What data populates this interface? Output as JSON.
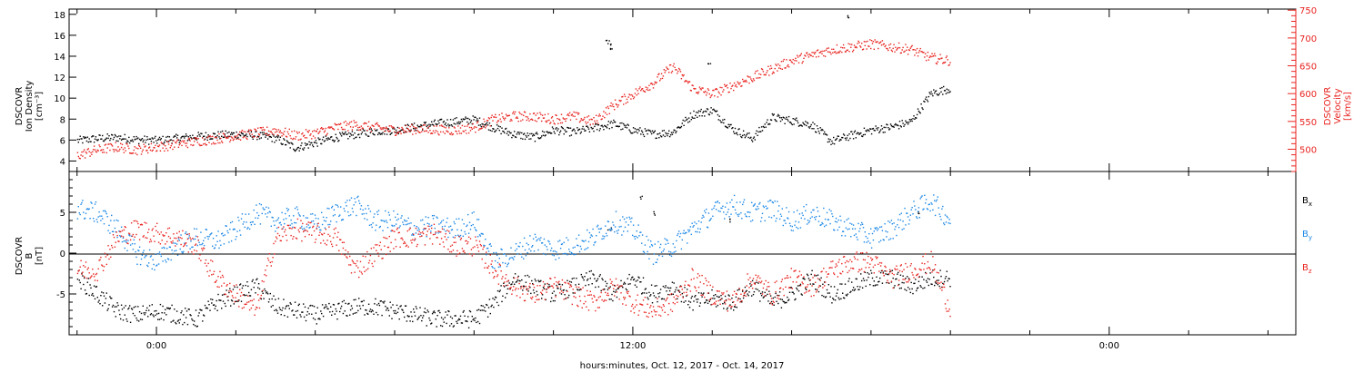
{
  "chart_data": [
    {
      "type": "scatter",
      "panel": "top",
      "ylabel": [
        "DSCOVR",
        "Ion Density",
        "[cm⁻³]"
      ],
      "ylim": [
        3,
        18.5
      ],
      "yticks": [
        4,
        6,
        8,
        10,
        12,
        14,
        16,
        18
      ],
      "ylabel_right": [
        "DSCOVR",
        "Velocity",
        "[km/s]"
      ],
      "ylim_right": [
        460,
        752
      ],
      "yticks_right": [
        500,
        550,
        600,
        650,
        700,
        750
      ],
      "series": [
        {
          "color": "#000000",
          "axis": "left",
          "x": [
            -2.0,
            -1.5,
            -1.0,
            -0.5,
            0.0,
            0.5,
            1.0,
            1.5,
            2.0,
            2.5,
            3.0,
            3.5,
            4.0,
            4.5,
            5.0,
            5.5,
            6.0,
            6.5,
            7.0,
            7.5,
            8.0,
            8.5,
            9.0,
            9.5,
            10.0,
            10.5,
            11.0,
            11.5,
            12.0,
            12.5,
            13.0,
            13.5,
            14.0,
            14.5,
            15.0,
            15.5,
            16.0,
            16.5,
            17.0,
            17.5,
            18.0,
            18.5,
            19.0,
            19.5,
            20.0
          ],
          "values": [
            6.0,
            6.2,
            6.3,
            6.1,
            6.0,
            6.2,
            6.4,
            6.5,
            6.6,
            6.5,
            6.2,
            5.3,
            5.8,
            6.3,
            6.6,
            6.9,
            7.0,
            7.3,
            7.6,
            7.8,
            8.0,
            7.2,
            6.6,
            6.3,
            7.0,
            6.8,
            7.2,
            7.6,
            7.0,
            6.6,
            6.8,
            8.5,
            8.9,
            7.1,
            6.2,
            8.2,
            7.9,
            7.5,
            5.9,
            6.5,
            7.0,
            7.3,
            7.8,
            10.5,
            11.0
          ],
          "x_extra": [
            11.35,
            11.4,
            11.45,
            13.9,
            17.4
          ],
          "values_extra": [
            15.5,
            15.2,
            14.8,
            13.2,
            17.8
          ]
        },
        {
          "color": "#e8231f",
          "axis": "right",
          "x": [
            -2.0,
            -1.5,
            -1.0,
            -0.5,
            0.0,
            0.5,
            1.0,
            1.5,
            2.0,
            2.5,
            3.0,
            3.5,
            4.0,
            4.5,
            5.0,
            5.5,
            6.0,
            6.5,
            7.0,
            7.5,
            8.0,
            8.5,
            9.0,
            9.5,
            10.0,
            10.5,
            11.0,
            11.5,
            12.0,
            12.5,
            13.0,
            13.5,
            14.0,
            14.5,
            15.0,
            15.5,
            16.0,
            16.5,
            17.0,
            17.5,
            18.0,
            18.5,
            19.0,
            19.5,
            20.0
          ],
          "values": [
            490,
            500,
            505,
            500,
            505,
            510,
            515,
            520,
            525,
            530,
            535,
            525,
            530,
            540,
            545,
            540,
            535,
            537,
            536,
            535,
            540,
            555,
            560,
            560,
            555,
            560,
            550,
            580,
            600,
            620,
            650,
            610,
            600,
            615,
            630,
            645,
            660,
            670,
            680,
            685,
            690,
            685,
            680,
            665,
            660
          ]
        }
      ]
    },
    {
      "type": "scatter",
      "panel": "bottom",
      "ylabel": [
        "DSCOVR",
        "B",
        "[nT]"
      ],
      "ylim": [
        -10,
        10
      ],
      "yticks": [
        -5,
        0,
        5
      ],
      "zero_line": true,
      "legend": [
        "Bx",
        "By",
        "Bz"
      ],
      "legend_position": "right",
      "series": [
        {
          "name": "Bx",
          "color": "#000000",
          "x": [
            -2.0,
            -1.5,
            -1.0,
            -0.5,
            0.0,
            0.5,
            1.0,
            1.5,
            2.0,
            2.5,
            3.0,
            3.5,
            4.0,
            4.5,
            5.0,
            5.5,
            6.0,
            6.5,
            7.0,
            7.5,
            8.0,
            8.5,
            9.0,
            9.5,
            10.0,
            10.5,
            11.0,
            11.5,
            12.0,
            12.5,
            13.0,
            13.5,
            14.0,
            14.5,
            15.0,
            15.5,
            16.0,
            16.5,
            17.0,
            17.5,
            18.0,
            18.5,
            19.0,
            19.5,
            20.0
          ],
          "values": [
            -3,
            -5,
            -7,
            -7.5,
            -7,
            -7.5,
            -8,
            -6,
            -5,
            -4,
            -6.5,
            -7,
            -7.5,
            -7,
            -6.5,
            -6.5,
            -7,
            -7.5,
            -8,
            -8,
            -8,
            -6,
            -3,
            -4,
            -5,
            -4,
            -3,
            -5,
            -3,
            -5,
            -4,
            -6,
            -5.5,
            -6,
            -4,
            -6,
            -5,
            -3,
            -5,
            -4,
            -3,
            -3,
            -4,
            -3,
            -3
          ],
          "x_extra": [
            11.4,
            12.2,
            12.5,
            14.4,
            19.2
          ],
          "values_extra": [
            3.0,
            7.0,
            5.0,
            4.0,
            5.0
          ]
        },
        {
          "name": "By",
          "color": "#1a87e6",
          "x": [
            -2.0,
            -1.5,
            -1.0,
            -0.5,
            0.0,
            0.5,
            1.0,
            1.5,
            2.0,
            2.5,
            3.0,
            3.5,
            4.0,
            4.5,
            5.0,
            5.5,
            6.0,
            6.5,
            7.0,
            7.5,
            8.0,
            8.5,
            9.0,
            9.5,
            10.0,
            10.5,
            11.0,
            11.5,
            12.0,
            12.5,
            13.0,
            13.5,
            14.0,
            14.5,
            15.0,
            15.5,
            16.0,
            16.5,
            17.0,
            17.5,
            18.0,
            18.5,
            19.0,
            19.5,
            20.0
          ],
          "values": [
            5.5,
            5.0,
            3.0,
            0.0,
            -1.0,
            1.0,
            2.0,
            1.5,
            3.0,
            5.0,
            4.0,
            4.5,
            3.5,
            5.0,
            6.0,
            4.0,
            4.0,
            3.0,
            3.5,
            3.0,
            4.0,
            -1.0,
            0.0,
            1.5,
            0.5,
            1.0,
            2.0,
            4.0,
            3.0,
            0.0,
            1.0,
            3.0,
            5.0,
            6.0,
            5.0,
            5.5,
            4.0,
            5.0,
            4.0,
            3.0,
            2.0,
            3.0,
            5.0,
            6.5,
            4.0
          ]
        },
        {
          "name": "Bz",
          "color": "#e8231f",
          "x": [
            -2.0,
            -1.5,
            -1.0,
            -0.5,
            0.0,
            0.5,
            1.0,
            1.5,
            2.0,
            2.5,
            3.0,
            3.5,
            4.0,
            4.5,
            5.0,
            5.5,
            6.0,
            6.5,
            7.0,
            7.5,
            8.0,
            8.5,
            9.0,
            9.5,
            10.0,
            10.5,
            11.0,
            11.5,
            12.0,
            12.5,
            13.0,
            13.5,
            14.0,
            14.5,
            15.0,
            15.5,
            16.0,
            16.5,
            17.0,
            17.5,
            18.0,
            18.5,
            19.0,
            19.5,
            20.0
          ],
          "values": [
            -2,
            -2,
            2,
            3,
            2.5,
            2,
            1,
            -3,
            -5,
            -7,
            2,
            3,
            2.5,
            2,
            -2,
            0,
            2,
            2,
            2.5,
            1,
            1,
            -2,
            -4,
            -5,
            -4,
            -5,
            -6,
            -4,
            -6,
            -7,
            -6,
            -3,
            -5,
            -6,
            -3,
            -5,
            -3,
            -4,
            -2,
            -1,
            -1,
            -3,
            -2,
            -1,
            -7
          ]
        }
      ]
    }
  ],
  "x_axis": {
    "xlabel": "hours:minutes, Oct. 12, 2017 - Oct. 14, 2017",
    "xlim": [
      -2.2,
      28.7
    ],
    "major_ticks": [
      0,
      12,
      24
    ],
    "tick_labels": [
      "0:00",
      "12:00",
      "0:00"
    ],
    "minor_step": 2
  },
  "colors": {
    "axis": "#000000",
    "right_axis": "#e8231f",
    "by": "#1a87e6"
  }
}
